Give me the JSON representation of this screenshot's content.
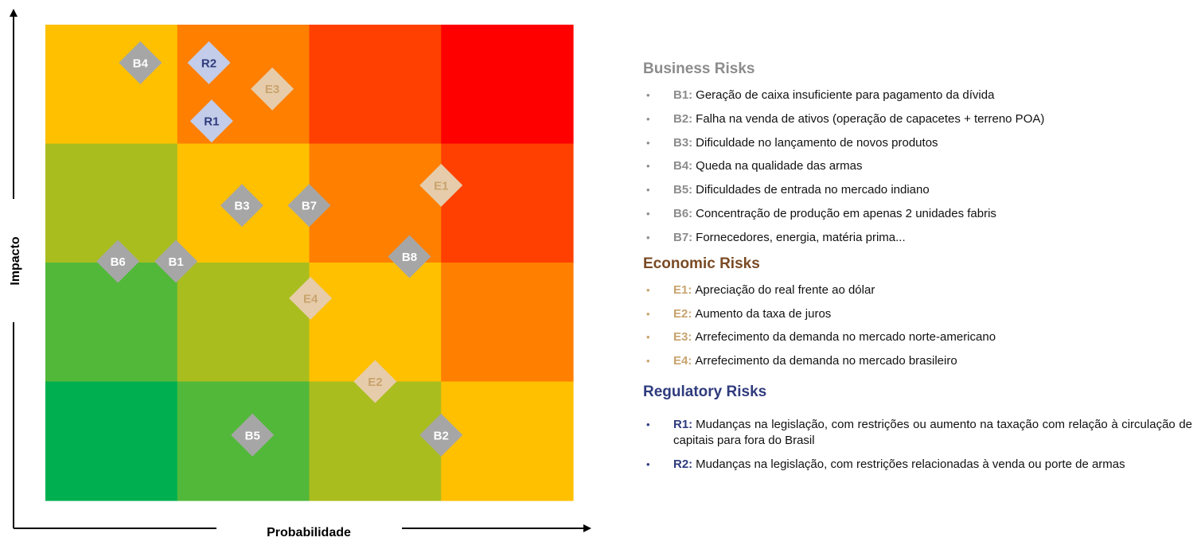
{
  "axes": {
    "y_label": "Impacto",
    "x_label": "Probabilidade"
  },
  "colors": {
    "grid": [
      [
        "#ffc000",
        "#ff7f00",
        "#ff4000",
        "#ff0000"
      ],
      [
        "#a9bd1e",
        "#ffc000",
        "#ff7f00",
        "#ff4000"
      ],
      [
        "#52b83a",
        "#a9bd1e",
        "#ffc000",
        "#ff7f00"
      ],
      [
        "#00b050",
        "#52b83a",
        "#a9bd1e",
        "#ffc000"
      ]
    ],
    "business_marker": "#a6a6a6",
    "economic_marker": "#e6ccaa",
    "regulatory_marker": "#c3cce8"
  },
  "markers": [
    {
      "id": "B4",
      "group": "business",
      "prob": 0.72,
      "impact": 3.68
    },
    {
      "id": "R2",
      "group": "regulatory",
      "prob": 1.24,
      "impact": 3.68
    },
    {
      "id": "E3",
      "group": "economic",
      "prob": 1.72,
      "impact": 3.46
    },
    {
      "id": "R1",
      "group": "regulatory",
      "prob": 1.26,
      "impact": 3.19
    },
    {
      "id": "E1",
      "group": "economic",
      "prob": 3.0,
      "impact": 2.65
    },
    {
      "id": "B3",
      "group": "business",
      "prob": 1.49,
      "impact": 2.48
    },
    {
      "id": "B7",
      "group": "business",
      "prob": 2.0,
      "impact": 2.48
    },
    {
      "id": "B8",
      "group": "business",
      "prob": 2.76,
      "impact": 2.05
    },
    {
      "id": "B6",
      "group": "business",
      "prob": 0.55,
      "impact": 2.01
    },
    {
      "id": "B1",
      "group": "business",
      "prob": 0.99,
      "impact": 2.01
    },
    {
      "id": "E4",
      "group": "economic",
      "prob": 2.01,
      "impact": 1.7
    },
    {
      "id": "E2",
      "group": "economic",
      "prob": 2.5,
      "impact": 1.0
    },
    {
      "id": "B5",
      "group": "business",
      "prob": 1.57,
      "impage": 0,
      "impact": 0.55
    },
    {
      "id": "B2",
      "group": "business",
      "prob": 3.0,
      "impact": 0.55
    }
  ],
  "legend": {
    "business": {
      "title": "Business Risks",
      "items": [
        {
          "code": "B1:",
          "text": "Geração de caixa insuficiente para pagamento da dívida"
        },
        {
          "code": "B2:",
          "text": "Falha na venda de ativos (operação de capacetes + terreno POA)"
        },
        {
          "code": "B3:",
          "text": "Dificuldade no lançamento de novos produtos"
        },
        {
          "code": "B4:",
          "text": "Queda na qualidade das armas"
        },
        {
          "code": "B5:",
          "text": "Dificuldades de entrada no mercado indiano"
        },
        {
          "code": "B6:",
          "text": "Concentração de produção em apenas 2 unidades fabris"
        },
        {
          "code": "B7:",
          "text": "Fornecedores, energia, matéria prima..."
        }
      ]
    },
    "economic": {
      "title": "Economic Risks",
      "items": [
        {
          "code": "E1:",
          "text": "Apreciação do real frente ao dólar"
        },
        {
          "code": "E2:",
          "text": "Aumento da taxa de juros"
        },
        {
          "code": "E3:",
          "text": "Arrefecimento da demanda no mercado norte-americano"
        },
        {
          "code": "E4:",
          "text": "Arrefecimento da demanda no mercado brasileiro"
        }
      ]
    },
    "regulatory": {
      "title": "Regulatory Risks",
      "items": [
        {
          "code": "R1:",
          "text": "Mudanças na legislação, com restrições ou aumento na taxação com relação à circulação de capitais para fora do Brasil"
        },
        {
          "code": "R2:",
          "text": "Mudanças na legislação, com restrições relacionadas à venda ou porte de armas"
        }
      ]
    }
  }
}
